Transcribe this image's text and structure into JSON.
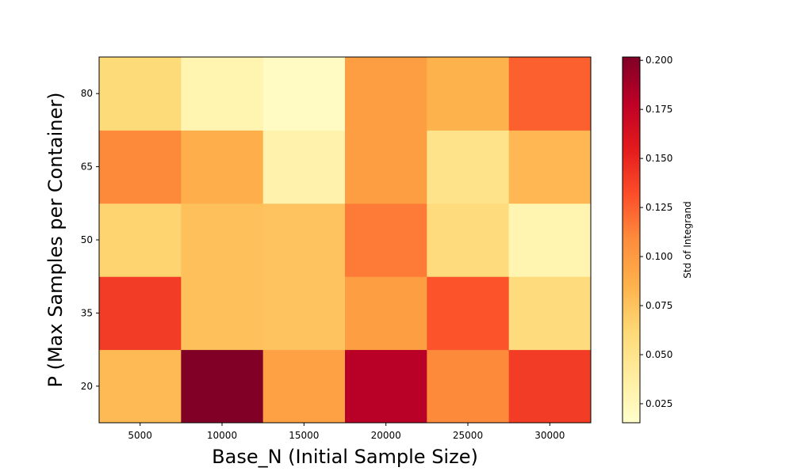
{
  "chart_data": {
    "type": "heatmap",
    "title": "",
    "xlabel": "Base_N (Initial Sample Size)",
    "ylabel": "P (Max Samples per Container)",
    "x_categories": [
      "5000",
      "10000",
      "15000",
      "20000",
      "25000",
      "30000"
    ],
    "y_categories": [
      "20",
      "35",
      "50",
      "65",
      "80"
    ],
    "values": [
      [
        0.08,
        0.202,
        0.096,
        0.18,
        0.11,
        0.14
      ],
      [
        0.14,
        0.077,
        0.075,
        0.098,
        0.13,
        0.058
      ],
      [
        0.065,
        0.077,
        0.075,
        0.115,
        0.058,
        0.03
      ],
      [
        0.11,
        0.088,
        0.032,
        0.098,
        0.05,
        0.082
      ],
      [
        0.06,
        0.03,
        0.02,
        0.098,
        0.085,
        0.125
      ]
    ],
    "colormap": "YlOrRd",
    "vmin": 0.0153,
    "vmax": 0.2017,
    "colorbar": {
      "label": "Std of Integrand",
      "ticks": [
        0.025,
        0.05,
        0.075,
        0.1,
        0.125,
        0.15,
        0.175,
        0.2
      ],
      "tick_labels": [
        "0.025",
        "0.050",
        "0.075",
        "0.100",
        "0.125",
        "0.150",
        "0.175",
        "0.200"
      ]
    }
  }
}
